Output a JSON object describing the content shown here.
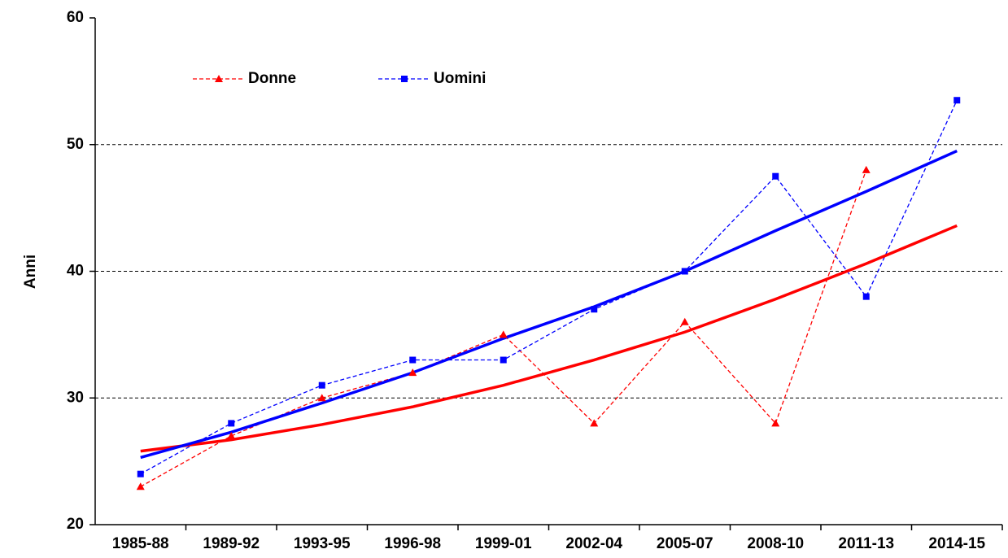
{
  "chart_data": {
    "type": "line",
    "y_label": "Anni",
    "categories": [
      "1985-88",
      "1989-92",
      "1993-95",
      "1996-98",
      "1999-01",
      "2002-04",
      "2005-07",
      "2008-10",
      "2011-13",
      "2014-15"
    ],
    "series": [
      {
        "name": "Donne",
        "color": "#ff0000",
        "marker": "triangle",
        "values": [
          23,
          27,
          30,
          32,
          35,
          28,
          36,
          28,
          48,
          null
        ]
      },
      {
        "name": "Uomini",
        "color": "#0000ff",
        "marker": "square",
        "values": [
          24,
          28,
          31,
          33,
          33,
          37,
          40,
          47.5,
          38,
          53.5
        ]
      }
    ],
    "trendlines": [
      {
        "color": "#ff0000",
        "values": [
          25.8,
          26.7,
          27.9,
          29.3,
          31.0,
          33.0,
          35.2,
          37.8,
          40.6,
          43.6
        ]
      },
      {
        "color": "#0000ff",
        "values": [
          25.3,
          27.3,
          29.6,
          32.0,
          34.7,
          37.2,
          40.0,
          43.2,
          46.3,
          49.5
        ]
      }
    ],
    "ylim": [
      20,
      60
    ],
    "yticks": [
      20,
      30,
      40,
      50,
      60
    ],
    "grid": true
  }
}
